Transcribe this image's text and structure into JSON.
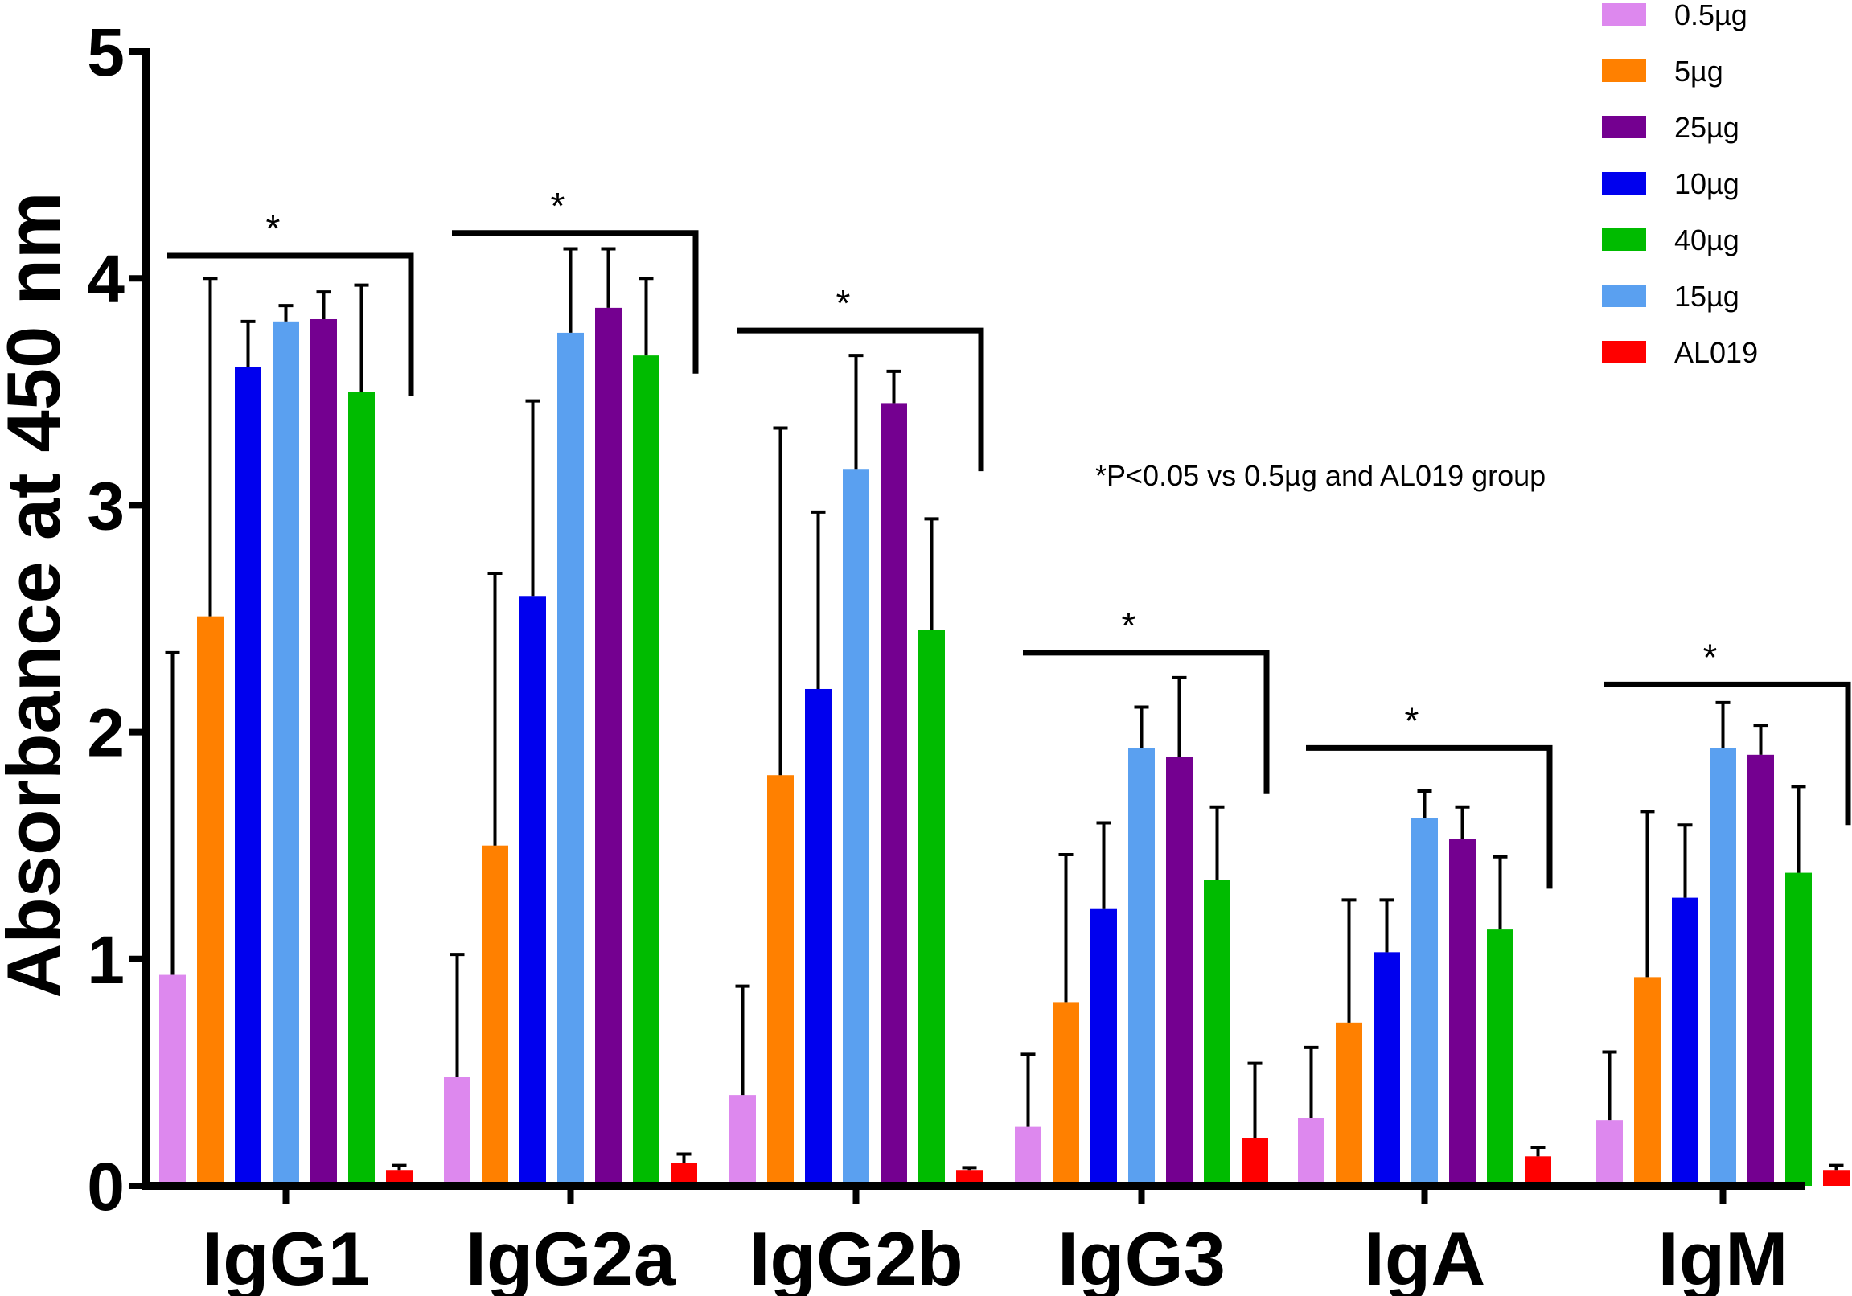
{
  "chart_data": {
    "type": "bar",
    "title": "",
    "xlabel": "",
    "ylabel": "Absorbance at 450 nm",
    "ylim": [
      0,
      5
    ],
    "yticks": [
      "0",
      "1",
      "2",
      "3",
      "4",
      "5"
    ],
    "categories": [
      "IgG1",
      "IgG2a",
      "IgG2b",
      "IgG3",
      "IgA",
      "IgM"
    ],
    "series": [
      {
        "name": "0.5µg",
        "color": "#dd88ee",
        "values": [
          0.93,
          0.48,
          0.4,
          0.26,
          0.3,
          0.29
        ],
        "errors": [
          1.42,
          0.54,
          0.48,
          0.32,
          0.31,
          0.3
        ]
      },
      {
        "name": "5µg",
        "color": "#ff8000",
        "values": [
          2.51,
          1.5,
          1.81,
          0.81,
          0.72,
          0.92
        ],
        "errors": [
          1.49,
          1.2,
          1.53,
          0.65,
          0.54,
          0.73
        ]
      },
      {
        "name": "10µg",
        "color": "#0000ee",
        "values": [
          3.61,
          2.6,
          2.19,
          1.22,
          1.03,
          1.27
        ],
        "errors": [
          0.2,
          0.86,
          0.78,
          0.38,
          0.23,
          0.32
        ]
      },
      {
        "name": "15µg",
        "color": "#5aa0f0",
        "values": [
          3.81,
          3.76,
          3.16,
          1.93,
          1.62,
          1.93
        ],
        "errors": [
          0.07,
          0.37,
          0.5,
          0.18,
          0.12,
          0.2
        ]
      },
      {
        "name": "25µg",
        "color": "#740090",
        "values": [
          3.82,
          3.87,
          3.45,
          1.89,
          1.53,
          1.9
        ],
        "errors": [
          0.12,
          0.26,
          0.14,
          0.35,
          0.14,
          0.13
        ]
      },
      {
        "name": "40µg",
        "color": "#00bb00",
        "values": [
          3.5,
          3.66,
          2.45,
          1.35,
          1.13,
          1.38
        ],
        "errors": [
          0.47,
          0.34,
          0.49,
          0.32,
          0.32,
          0.38
        ]
      },
      {
        "name": "AL019",
        "color": "#ff0000",
        "values": [
          0.07,
          0.1,
          0.07,
          0.21,
          0.13,
          0.07
        ],
        "errors": [
          0.02,
          0.04,
          0.01,
          0.33,
          0.04,
          0.02
        ]
      }
    ],
    "series_order_in_group": [
      "0.5µg",
      "5µg",
      "10µg",
      "15µg",
      "25µg",
      "40µg",
      "AL019"
    ],
    "legend": {
      "placement": "top-right",
      "entries": [
        {
          "label": "0.5µg",
          "color": "#dd88ee"
        },
        {
          "label": "5µg",
          "color": "#ff8000"
        },
        {
          "label": "25µg",
          "color": "#740090"
        },
        {
          "label": "10µg",
          "color": "#0000ee"
        },
        {
          "label": "40µg",
          "color": "#00bb00"
        },
        {
          "label": "15µg",
          "color": "#5aa0f0"
        },
        {
          "label": "AL019",
          "color": "#ff0000"
        }
      ]
    },
    "significance": [
      {
        "category": "IgG1",
        "label": "*",
        "level": 4.1
      },
      {
        "category": "IgG2a",
        "label": "*",
        "level": 4.2
      },
      {
        "category": "IgG2b",
        "label": "*",
        "level": 3.77
      },
      {
        "category": "IgG3",
        "label": "*",
        "level": 2.35
      },
      {
        "category": "IgA",
        "label": "*",
        "level": 1.93
      },
      {
        "category": "IgM",
        "label": "*",
        "level": 2.21
      }
    ],
    "annotation": "*P<0.05 vs 0.5µg and AL019 group"
  }
}
